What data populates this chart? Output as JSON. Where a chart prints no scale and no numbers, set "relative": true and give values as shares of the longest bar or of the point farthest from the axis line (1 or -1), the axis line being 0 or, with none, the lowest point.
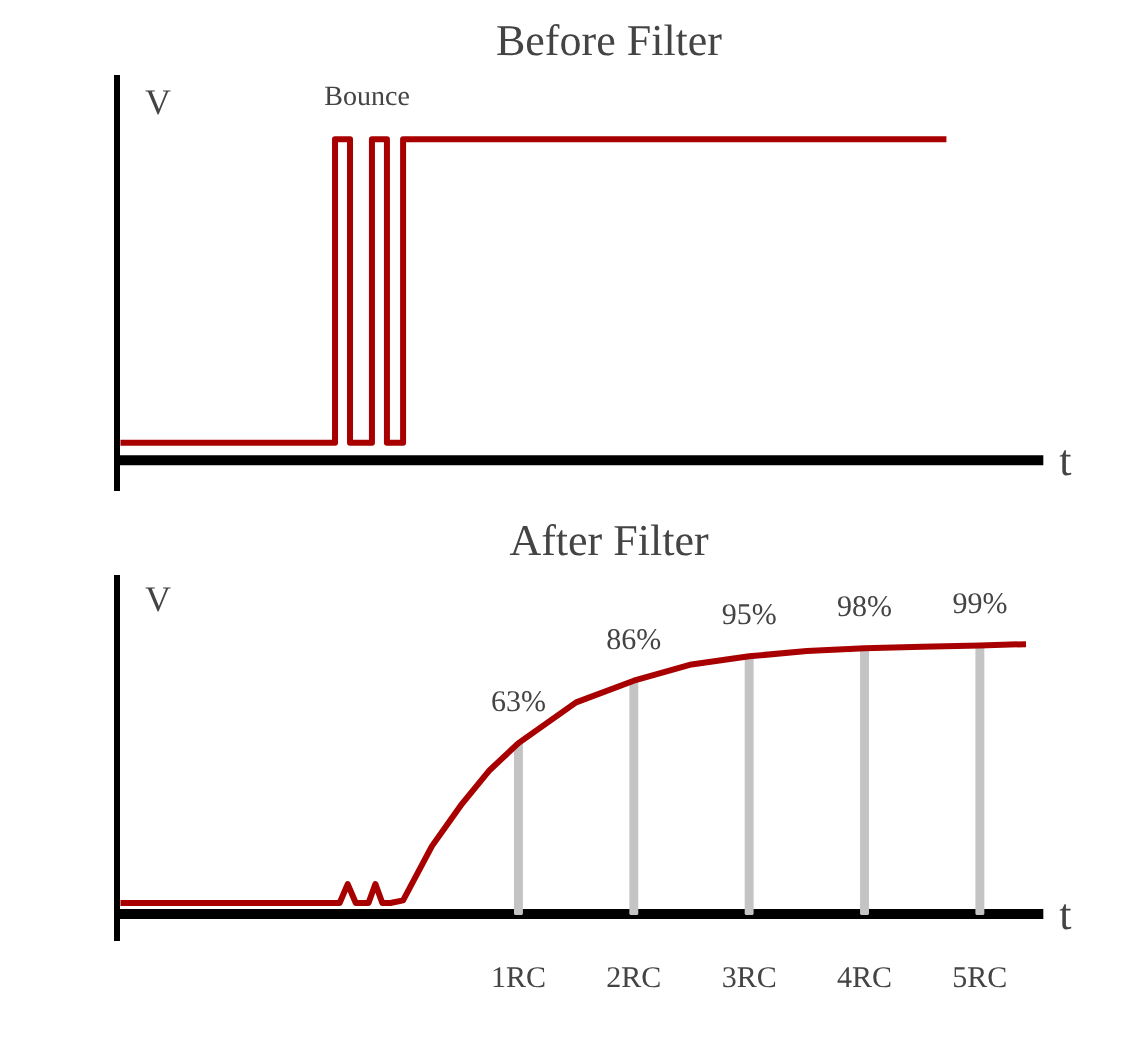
{
  "chart_data": [
    {
      "type": "line",
      "title": "Before Filter",
      "xlabel": "t",
      "ylabel": "V",
      "relative": true,
      "xlim": [
        -2.48,
        5.55
      ],
      "tick_labels": false,
      "grid": false,
      "annotations": [
        "Bounce"
      ],
      "series": [
        {
          "color": "#a80000",
          "x": [
            -2.45,
            -0.59,
            -0.59,
            -0.46,
            -0.46,
            -0.27,
            -0.27,
            -0.14,
            -0.14,
            0,
            0,
            4.71
          ],
          "values": [
            0.054,
            0.054,
            1,
            1,
            0.054,
            0.054,
            1,
            1,
            0.054,
            0.054,
            1,
            1
          ]
        }
      ]
    },
    {
      "type": "line",
      "title": "After Filter",
      "xlabel": "t",
      "ylabel": "V",
      "xlim": [
        -2.48,
        5.55
      ],
      "ylim": [
        0,
        125
      ],
      "tick_labels": "x",
      "grid": false,
      "xticks": [
        {
          "value": 1,
          "label": "1RC"
        },
        {
          "value": 2,
          "label": "2RC"
        },
        {
          "value": 3,
          "label": "3RC"
        },
        {
          "value": 4,
          "label": "4RC"
        },
        {
          "value": 5,
          "label": "5RC"
        }
      ],
      "series": [
        {
          "type": "bar",
          "color": "#c4c4c4",
          "x": [
            1,
            2,
            3,
            4,
            5
          ],
          "values": [
            63,
            86,
            95,
            98,
            99
          ],
          "value_labels": [
            "63%",
            "86%",
            "95%",
            "98%",
            "99%"
          ]
        },
        {
          "type": "line",
          "color": "#a80000",
          "x": [
            -2.45,
            -0.55,
            -0.48,
            -0.41,
            -0.3,
            -0.24,
            -0.18,
            -0.11,
            0,
            0.25,
            0.5,
            0.75,
            1,
            1.5,
            2,
            2.5,
            3,
            3.5,
            4,
            4.5,
            5,
            5.4
          ],
          "values": [
            4,
            4,
            11,
            4,
            4,
            11,
            4,
            4,
            5,
            25,
            40,
            53,
            63,
            78,
            86,
            92,
            95,
            97,
            98,
            98.5,
            99,
            99.5
          ]
        }
      ]
    }
  ]
}
